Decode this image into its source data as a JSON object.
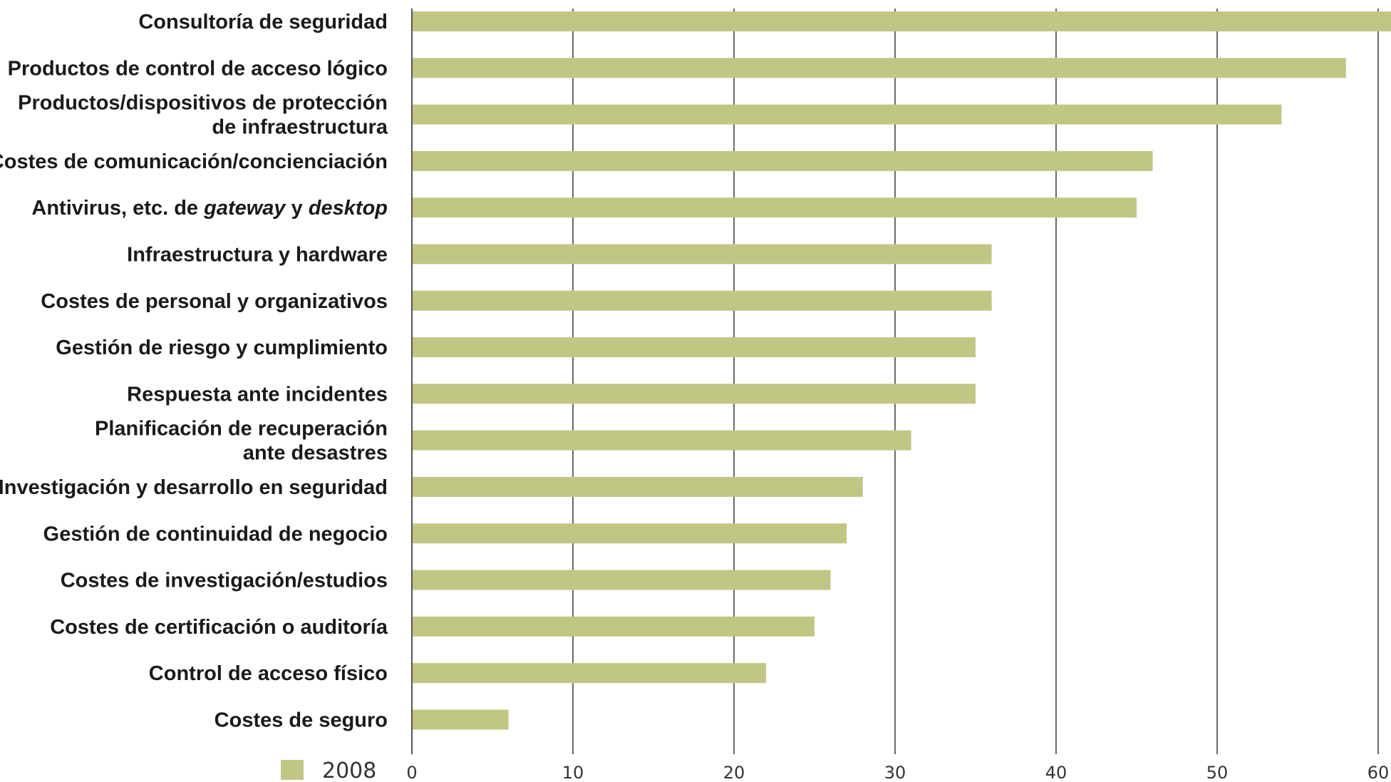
{
  "chart_data": {
    "type": "bar",
    "orientation": "horizontal",
    "categories": [
      [
        "Consultoría de seguridad"
      ],
      [
        "Productos de control de acceso lógico"
      ],
      [
        "Productos/dispositivos de protección",
        "de infraestructura"
      ],
      [
        "Costes de comunicación/concienciación"
      ],
      [
        "Antivirus, etc. de gateway y desktop"
      ],
      [
        "Infraestructura y hardware"
      ],
      [
        "Costes de personal y organizativos"
      ],
      [
        "Gestión de riesgo y cumplimiento"
      ],
      [
        "Respuesta ante incidentes"
      ],
      [
        "Planificación de recuperación",
        "ante desastres"
      ],
      [
        "Investigación y desarrollo en seguridad"
      ],
      [
        "Gestión de continuidad de negocio"
      ],
      [
        "Costes de investigación/estudios"
      ],
      [
        "Costes de certificación o auditoría"
      ],
      [
        "Control de acceso físico"
      ],
      [
        "Costes de seguro"
      ]
    ],
    "series": [
      {
        "name": "2008",
        "color": "#c2c685",
        "values": [
          61,
          58,
          54,
          46,
          45,
          36,
          36,
          35,
          35,
          31,
          28,
          27,
          26,
          25,
          22,
          6
        ]
      }
    ],
    "xlim": [
      0,
      60
    ],
    "xticks": [
      "0",
      "10",
      "20",
      "30",
      "40",
      "50",
      "60"
    ],
    "grid": true,
    "legend": "bottom-left"
  }
}
